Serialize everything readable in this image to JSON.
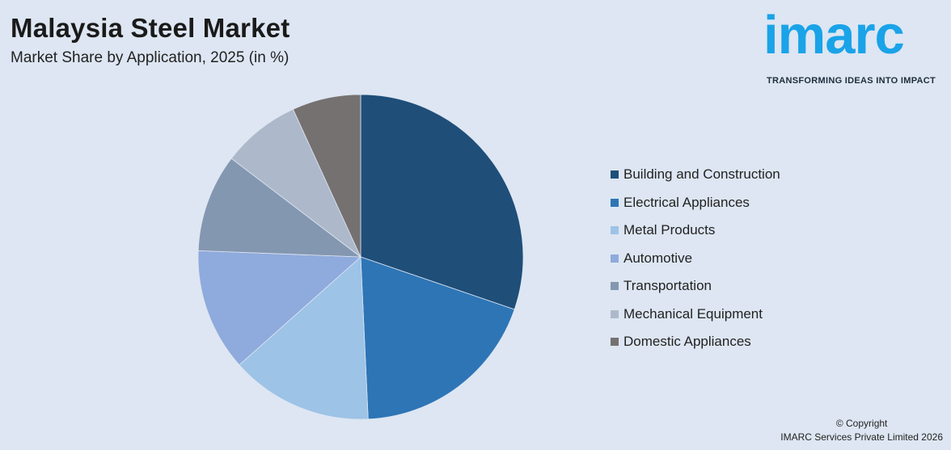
{
  "chart_data": {
    "type": "pie",
    "title": "Malaysia Steel Market",
    "subtitle": "Market Share by Application, 2025 (in %)",
    "start_angle_deg": 0,
    "direction": "clockwise",
    "slices": [
      {
        "label": "Building and Construction",
        "value": 31,
        "color": "#1f4e79"
      },
      {
        "label": "Electrical Appliances",
        "value": 19.5,
        "color": "#2e75b6"
      },
      {
        "label": "Metal Products",
        "value": 14.5,
        "color": "#9dc3e6"
      },
      {
        "label": "Automotive",
        "value": 12.5,
        "color": "#8faadc"
      },
      {
        "label": "Transportation",
        "value": 10,
        "color": "#8497b0"
      },
      {
        "label": "Mechanical Equipment",
        "value": 8,
        "color": "#adb9ca"
      },
      {
        "label": "Domestic Appliances",
        "value": 7,
        "color": "#767171"
      }
    ],
    "legend_position": "right"
  },
  "brand": {
    "logo_text": "imarc",
    "tagline": "TRANSFORMING IDEAS INTO IMPACT",
    "color": "#1aa3e8"
  },
  "footer": {
    "copyright_line1": "© Copyright",
    "copyright_line2": "IMARC Services Private Limited 2026"
  }
}
